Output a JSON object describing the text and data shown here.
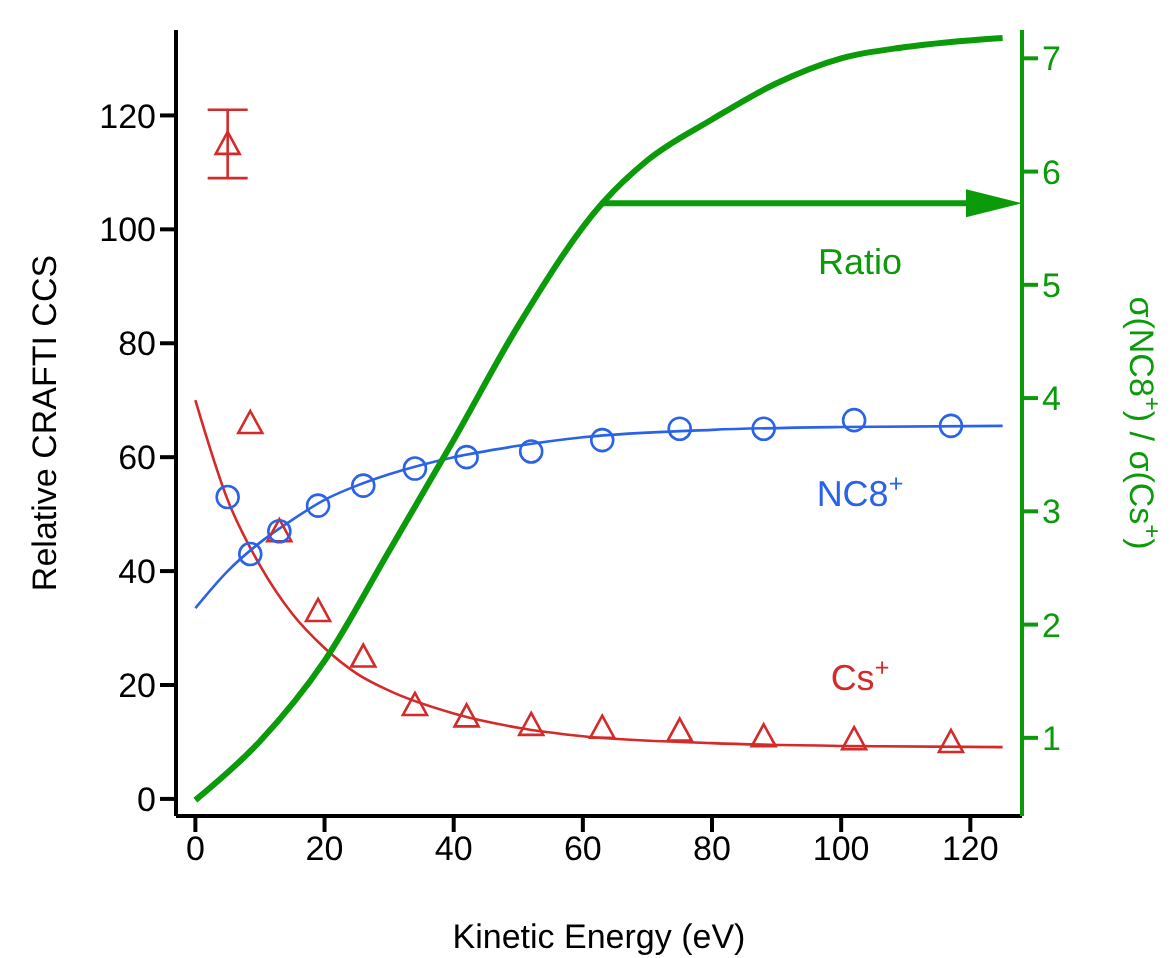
{
  "chart_data": {
    "type": "scatter",
    "xlabel": "Kinetic Energy (eV)",
    "ylabel": "Relative CRAFTI CCS",
    "y2label": "σ(NC8$^{+}$) / σ(Cs$^{+}$)",
    "xlim": [
      -3,
      128
    ],
    "xticks": [
      0,
      20,
      40,
      60,
      80,
      100,
      120
    ],
    "ylim": [
      -3,
      135
    ],
    "yticks": [
      0,
      20,
      40,
      60,
      80,
      100,
      120
    ],
    "y2lim": [
      0.31,
      7.25
    ],
    "y2ticks": [
      1,
      2,
      3,
      4,
      5,
      6,
      7
    ],
    "series": [
      {
        "name": "Cs$^{+}$",
        "color": "#d42a2a",
        "marker": "triangle",
        "x": [
          5,
          8.5,
          13,
          19,
          26,
          34,
          42,
          52,
          63,
          75,
          88,
          102,
          117
        ],
        "values": [
          115,
          66,
          47,
          33,
          25,
          16.5,
          14.5,
          13,
          12.5,
          12,
          11,
          10.5,
          10
        ],
        "errors": [
          6,
          null,
          null,
          null,
          null,
          null,
          null,
          null,
          null,
          null,
          null,
          null,
          null
        ]
      },
      {
        "type": "line",
        "color": "#d42a2a",
        "marker": "none",
        "x": [
          0,
          5,
          10,
          15,
          20,
          25,
          30,
          40,
          50,
          60,
          80,
          100,
          125
        ],
        "values": [
          70,
          52.5,
          41,
          32.5,
          26.5,
          22,
          19,
          15,
          12.5,
          11,
          9.8,
          9.3,
          9.1
        ]
      },
      {
        "name": "NC8$^{+}$",
        "color": "#2a62e8",
        "marker": "circle",
        "x": [
          5,
          8.5,
          13,
          19,
          26,
          34,
          42,
          52,
          63,
          75,
          88,
          102,
          117
        ],
        "values": [
          53,
          43,
          47,
          51.5,
          55,
          58,
          60,
          61,
          63,
          65,
          65,
          66.5,
          65.5
        ]
      },
      {
        "type": "line",
        "color": "#2a62e8",
        "marker": "none",
        "x": [
          0,
          5,
          10,
          15,
          20,
          25,
          30,
          40,
          50,
          60,
          80,
          100,
          125
        ],
        "values": [
          33.5,
          40,
          45,
          49,
          52.5,
          55,
          57,
          60,
          62,
          63.5,
          64.8,
          65.3,
          65.5
        ]
      },
      {
        "type": "line",
        "name": "Ratio",
        "color": "#0a9a0a",
        "marker": "none",
        "axis": "y2",
        "x": [
          0,
          10,
          20,
          30,
          40,
          50,
          63,
          70,
          80,
          90,
          100,
          110,
          125
        ],
        "values": [
          0.45,
          0.97,
          1.68,
          2.65,
          3.63,
          4.64,
          5.72,
          6.1,
          6.46,
          6.78,
          7.0,
          7.1,
          7.18
        ]
      }
    ]
  }
}
